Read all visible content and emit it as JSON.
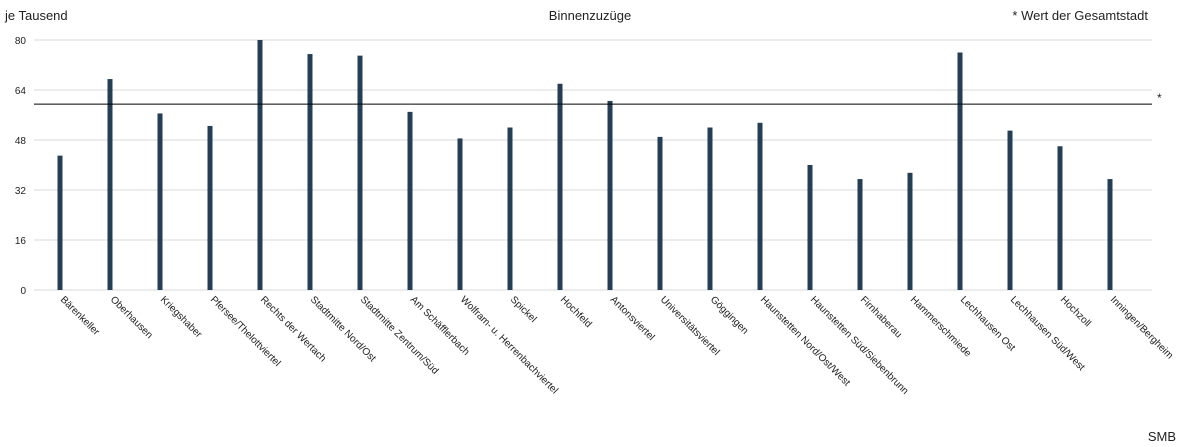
{
  "chart_data": {
    "type": "bar",
    "title": "Binnenzuzüge",
    "ylabel": "je Tausend",
    "xlabel": "",
    "ylim": [
      0,
      80
    ],
    "yticks": [
      0,
      16,
      32,
      48,
      64,
      80
    ],
    "grid": true,
    "bar_color": "#243f55",
    "reference_line": {
      "value": 59.5,
      "label": "*",
      "note": "* Wert der Gesamtstadt"
    },
    "source": "SMB",
    "categories": [
      "Bärenkeller",
      "Oberhausen",
      "Kriegshaber",
      "Pfersee/Thelottviertel",
      "Rechts der Wertach",
      "Stadtmitte Nord/Ost",
      "Stadtmitte Zentrum/Süd",
      "Am Schäfflerbach",
      "Wolfram- u. Herrenbachviertel",
      "Spickel",
      "Hochfeld",
      "Antonsviertel",
      "Universitätsviertel",
      "Göggingen",
      "Haunstetten Nord/Ost/West",
      "Haunstetten Süd/Siebenbrunn",
      "Firnhaberau",
      "Hammerschmiede",
      "Lechhausen Ost",
      "Lechhausen Süd/West",
      "Hochzoll",
      "Inningen/Bergheim"
    ],
    "values": [
      43,
      67.5,
      56.5,
      52.5,
      80,
      75.5,
      75,
      57,
      48.5,
      52,
      66,
      60.5,
      49,
      52,
      53.5,
      40,
      35.5,
      37.5,
      76,
      51,
      46,
      35.5
    ]
  }
}
